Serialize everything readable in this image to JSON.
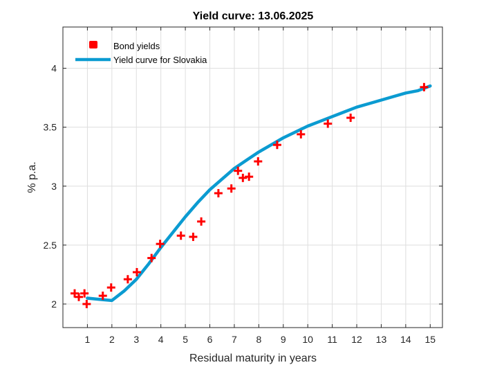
{
  "chart_data": {
    "type": "line",
    "title": "Yield curve: 13.06.2025",
    "xlabel": "Residual maturity in years",
    "ylabel": "% p.a.",
    "xlim": [
      0,
      15.5
    ],
    "ylim": [
      1.8,
      4.35
    ],
    "xticks": [
      1,
      2,
      3,
      4,
      5,
      6,
      7,
      8,
      9,
      10,
      11,
      12,
      13,
      14,
      15
    ],
    "yticks": [
      2,
      2.5,
      3,
      3.5,
      4
    ],
    "ytick_labels": [
      "2",
      "2.5",
      "3",
      "3.5",
      "4"
    ],
    "grid": true,
    "legend_position": "top-left",
    "series": [
      {
        "name": "Bond yields",
        "kind": "scatter",
        "marker": "plus",
        "color": "#ff0000",
        "points": [
          {
            "x": 0.48,
            "y": 2.09
          },
          {
            "x": 0.65,
            "y": 2.06
          },
          {
            "x": 0.88,
            "y": 2.09
          },
          {
            "x": 0.97,
            "y": 2.0
          },
          {
            "x": 1.63,
            "y": 2.07
          },
          {
            "x": 1.97,
            "y": 2.14
          },
          {
            "x": 2.65,
            "y": 2.21
          },
          {
            "x": 3.02,
            "y": 2.27
          },
          {
            "x": 3.62,
            "y": 2.39
          },
          {
            "x": 3.97,
            "y": 2.51
          },
          {
            "x": 4.82,
            "y": 2.58
          },
          {
            "x": 5.32,
            "y": 2.57
          },
          {
            "x": 5.65,
            "y": 2.7
          },
          {
            "x": 6.35,
            "y": 2.94
          },
          {
            "x": 6.88,
            "y": 2.98
          },
          {
            "x": 7.15,
            "y": 3.13
          },
          {
            "x": 7.35,
            "y": 3.07
          },
          {
            "x": 7.6,
            "y": 3.08
          },
          {
            "x": 7.97,
            "y": 3.21
          },
          {
            "x": 8.75,
            "y": 3.35
          },
          {
            "x": 9.72,
            "y": 3.44
          },
          {
            "x": 10.82,
            "y": 3.53
          },
          {
            "x": 11.75,
            "y": 3.58
          },
          {
            "x": 14.75,
            "y": 3.84
          }
        ]
      },
      {
        "name": "Yield curve for Slovakia",
        "kind": "line",
        "color": "#0b9bd1",
        "points": [
          {
            "x": 1.0,
            "y": 2.05
          },
          {
            "x": 1.5,
            "y": 2.04
          },
          {
            "x": 2.0,
            "y": 2.03
          },
          {
            "x": 2.5,
            "y": 2.11
          },
          {
            "x": 3.0,
            "y": 2.21
          },
          {
            "x": 3.5,
            "y": 2.34
          },
          {
            "x": 4.0,
            "y": 2.48
          },
          {
            "x": 4.5,
            "y": 2.61
          },
          {
            "x": 5.0,
            "y": 2.74
          },
          {
            "x": 5.5,
            "y": 2.86
          },
          {
            "x": 6.0,
            "y": 2.97
          },
          {
            "x": 6.5,
            "y": 3.06
          },
          {
            "x": 7.0,
            "y": 3.15
          },
          {
            "x": 7.5,
            "y": 3.22
          },
          {
            "x": 8.0,
            "y": 3.29
          },
          {
            "x": 8.5,
            "y": 3.35
          },
          {
            "x": 9.0,
            "y": 3.41
          },
          {
            "x": 9.5,
            "y": 3.46
          },
          {
            "x": 10.0,
            "y": 3.51
          },
          {
            "x": 10.5,
            "y": 3.55
          },
          {
            "x": 11.0,
            "y": 3.59
          },
          {
            "x": 11.5,
            "y": 3.63
          },
          {
            "x": 12.0,
            "y": 3.67
          },
          {
            "x": 12.5,
            "y": 3.7
          },
          {
            "x": 13.0,
            "y": 3.73
          },
          {
            "x": 13.5,
            "y": 3.76
          },
          {
            "x": 14.0,
            "y": 3.79
          },
          {
            "x": 14.5,
            "y": 3.81
          },
          {
            "x": 15.0,
            "y": 3.85
          }
        ]
      }
    ]
  }
}
